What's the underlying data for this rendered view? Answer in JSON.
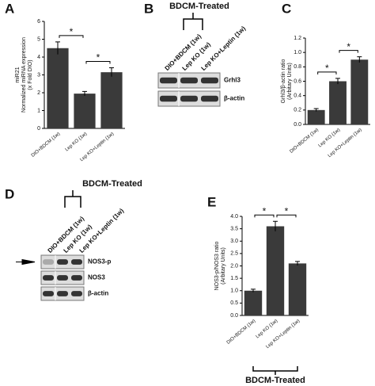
{
  "chart_data": [
    {
      "type": "bar",
      "panel": "A",
      "categories": [
        "DIO+BDCM (1w)",
        "Lep KO (1w)",
        "Lep KO+Leptin (1w)"
      ],
      "values": [
        4.5,
        1.95,
        3.15
      ],
      "errors": [
        0.35,
        0.12,
        0.25
      ],
      "color": "#3a3a3a",
      "y_label": [
        "miR21",
        "Normalized miRNA expression",
        "(x Fold DIO)"
      ],
      "ylim": [
        0,
        6
      ],
      "yticks": [
        0,
        1,
        2,
        3,
        4,
        5,
        6
      ],
      "significance": [
        "*",
        "*"
      ]
    },
    {
      "type": "bar",
      "panel": "C",
      "categories": [
        "DIO+BDCM (1w)",
        "Lep KO (1w)",
        "Lep KO+Leptin (1w)"
      ],
      "values": [
        0.2,
        0.6,
        0.9
      ],
      "errors": [
        0.02,
        0.04,
        0.04
      ],
      "color": "#3a3a3a",
      "y_label": [
        "Grhl3/β-actin ratio",
        "(Arbitary Units)"
      ],
      "ylim": [
        0,
        1.2
      ],
      "yticks": [
        {
          "value": 0,
          "label": "0.0"
        },
        0.2,
        0.4,
        0.6,
        0.8,
        {
          "value": 1,
          "label": "1.0"
        },
        1.2
      ],
      "significance": [
        "*",
        "*"
      ]
    },
    {
      "type": "bar",
      "panel": "E",
      "categories": [
        "DIO+BDCM (1w)",
        "Lep KO (1w)",
        "Lep KO+Leptin (1w)"
      ],
      "values": [
        1.0,
        3.6,
        2.1
      ],
      "errors": [
        0.06,
        0.2,
        0.08
      ],
      "color": "#3a3a3a",
      "y_label": [
        "NOS3-p/NOS3 ratio",
        "(Arbitary Units)"
      ],
      "ylim": [
        0,
        4
      ],
      "yticks": [
        {
          "value": 0,
          "label": "0.0"
        },
        0.5,
        {
          "value": 1,
          "label": "1.0"
        },
        1.5,
        {
          "value": 2,
          "label": "2.0"
        },
        2.5,
        {
          "value": 3,
          "label": "3.0"
        },
        3.5,
        {
          "value": 4,
          "label": "4.0"
        }
      ],
      "significance": [
        "*",
        "*"
      ],
      "group_label": "BDCM-Treated"
    }
  ],
  "blots": [
    {
      "panel": "B",
      "group_label": "BDCM-Treated",
      "lanes": [
        "DIO+BDCM (1w)",
        "Lep KO (1w)",
        "Lep KO+Leptin (1w)"
      ],
      "bands": [
        "Grhl3",
        "β-actin"
      ]
    },
    {
      "panel": "D",
      "group_label": "BDCM-Treated",
      "lanes": [
        "DIO+BDCM (1w)",
        "Lep KO (1w)",
        "Lep KO+Leptin (1w)"
      ],
      "bands": [
        "NOS3-p",
        "NOS3",
        "β-actin"
      ]
    }
  ]
}
